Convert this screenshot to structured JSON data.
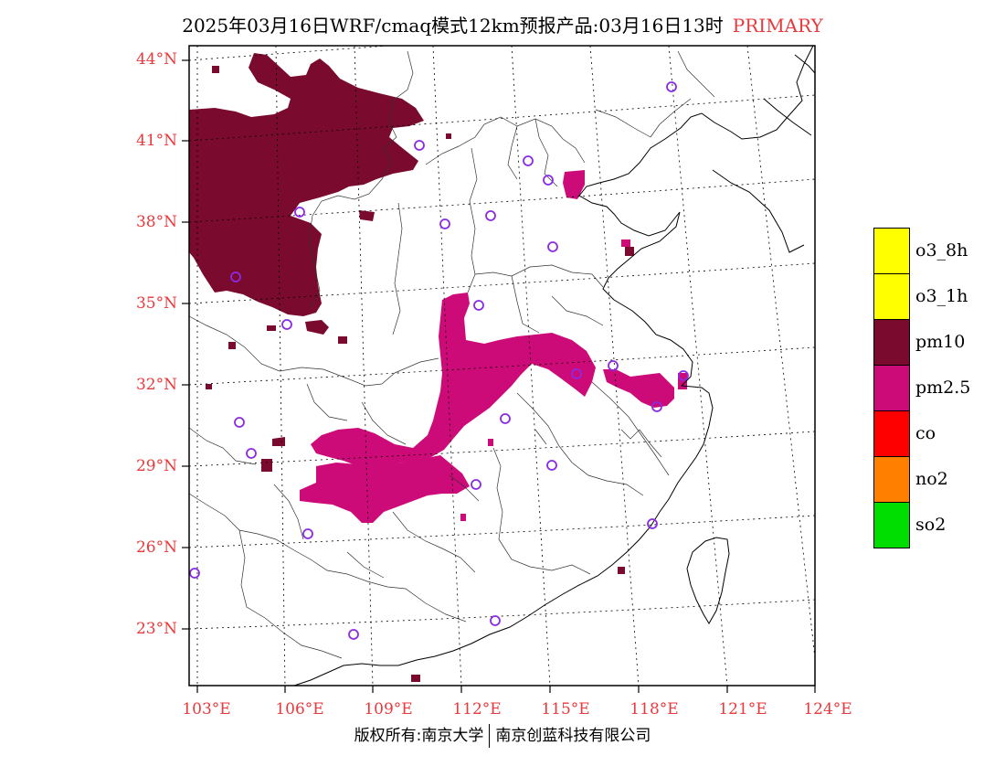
{
  "title": {
    "main": "2025年03月16日WRF/cmaq模式12km预报产品:03月16日13时",
    "tag": "PRIMARY"
  },
  "map": {
    "lat_labels": [
      "44°N",
      "41°N",
      "38°N",
      "35°N",
      "32°N",
      "29°N",
      "26°N",
      "23°N"
    ],
    "lon_labels": [
      "103°E",
      "106°E",
      "109°E",
      "112°E",
      "115°E",
      "118°E",
      "121°E",
      "124°E"
    ],
    "colors": {
      "pm10": "#7a0a2e",
      "pm25": "#cc0a78",
      "station": "#8a2be2",
      "frame": "#000000",
      "label": "#e8393c"
    }
  },
  "legend": [
    {
      "label": "o3_8h",
      "color": "#ffff00"
    },
    {
      "label": "o3_1h",
      "color": "#ffff00"
    },
    {
      "label": "pm10",
      "color": "#7a0a2e"
    },
    {
      "label": "pm2.5",
      "color": "#cc0a78"
    },
    {
      "label": "co",
      "color": "#ff0000"
    },
    {
      "label": "no2",
      "color": "#ff8000"
    },
    {
      "label": "so2",
      "color": "#00dd00"
    }
  ],
  "footer": {
    "left": "版权所有:南京大学",
    "right": "南京创蓝科技有限公司"
  }
}
